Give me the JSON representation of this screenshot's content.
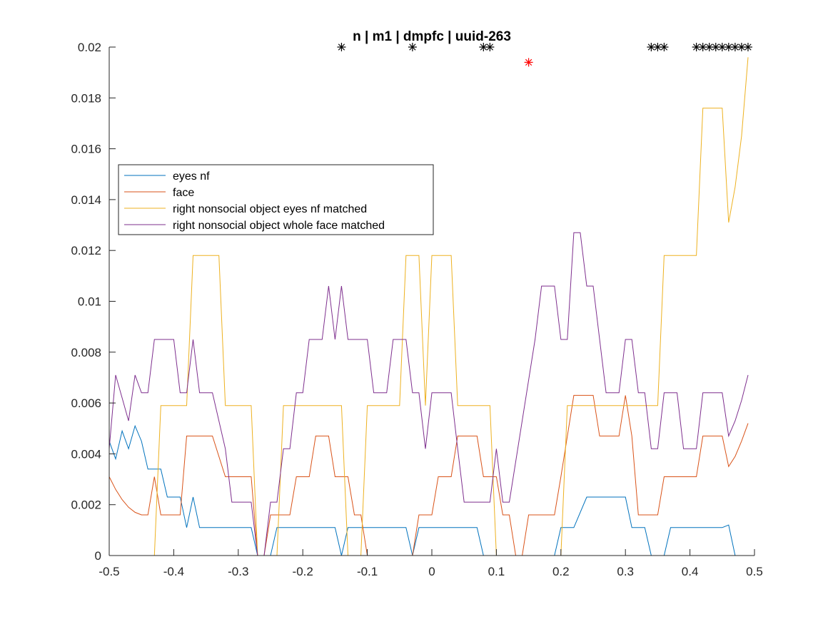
{
  "chart_data": {
    "type": "line",
    "title": "n | m1 | dmpfc | uuid-263",
    "xlabel": "",
    "ylabel": "",
    "xlim": [
      -0.5,
      0.5
    ],
    "ylim": [
      0,
      0.02
    ],
    "grid": false,
    "legend_position": "left",
    "x_ticks": [
      "-0.5",
      "-0.4",
      "-0.3",
      "-0.2",
      "-0.1",
      "0",
      "0.1",
      "0.2",
      "0.3",
      "0.4",
      "0.5"
    ],
    "y_ticks": [
      "0",
      "0.002",
      "0.004",
      "0.006",
      "0.008",
      "0.01",
      "0.012",
      "0.014",
      "0.016",
      "0.018",
      "0.02"
    ],
    "series": [
      {
        "name": "eyes nf",
        "color": "#0072BD",
        "points": [
          [
            -0.5,
            0.0045
          ],
          [
            -0.49,
            0.0038
          ],
          [
            -0.48,
            0.0049
          ],
          [
            -0.47,
            0.0042
          ],
          [
            -0.46,
            0.0051
          ],
          [
            -0.45,
            0.0045
          ],
          [
            -0.44,
            0.0034
          ],
          [
            -0.43,
            0.0034
          ],
          [
            -0.42,
            0.0034
          ],
          [
            -0.41,
            0.0023
          ],
          [
            -0.39,
            0.0023
          ],
          [
            -0.38,
            0.0011
          ],
          [
            -0.37,
            0.0023
          ],
          [
            -0.36,
            0.0011
          ],
          [
            -0.28,
            0.0011
          ],
          [
            -0.27,
            0.0
          ],
          [
            -0.25,
            0.0
          ],
          [
            -0.24,
            0.0011
          ],
          [
            -0.15,
            0.0011
          ],
          [
            -0.14,
            0.0
          ],
          [
            -0.13,
            0.0011
          ],
          [
            -0.04,
            0.0011
          ],
          [
            -0.03,
            0.0
          ],
          [
            -0.02,
            0.0011
          ],
          [
            0.07,
            0.0011
          ],
          [
            0.08,
            0.0
          ],
          [
            0.19,
            0.0
          ],
          [
            0.2,
            0.0011
          ],
          [
            0.22,
            0.0011
          ],
          [
            0.24,
            0.0023
          ],
          [
            0.3,
            0.0023
          ],
          [
            0.31,
            0.0011
          ],
          [
            0.33,
            0.0011
          ],
          [
            0.34,
            0.0
          ],
          [
            0.36,
            0.0
          ],
          [
            0.37,
            0.0011
          ],
          [
            0.45,
            0.0011
          ],
          [
            0.46,
            0.0012
          ],
          [
            0.47,
            0.0
          ],
          [
            0.49,
            0.0
          ]
        ]
      },
      {
        "name": "face",
        "color": "#D95319",
        "points": [
          [
            -0.5,
            0.0031
          ],
          [
            -0.49,
            0.0026
          ],
          [
            -0.48,
            0.0022
          ],
          [
            -0.47,
            0.0019
          ],
          [
            -0.46,
            0.0017
          ],
          [
            -0.45,
            0.0016
          ],
          [
            -0.44,
            0.0016
          ],
          [
            -0.43,
            0.0031
          ],
          [
            -0.42,
            0.0016
          ],
          [
            -0.39,
            0.0016
          ],
          [
            -0.38,
            0.0047
          ],
          [
            -0.34,
            0.0047
          ],
          [
            -0.32,
            0.0031
          ],
          [
            -0.28,
            0.0031
          ],
          [
            -0.27,
            0.0
          ],
          [
            -0.26,
            0.0
          ],
          [
            -0.25,
            0.0016
          ],
          [
            -0.22,
            0.0016
          ],
          [
            -0.21,
            0.0031
          ],
          [
            -0.19,
            0.0031
          ],
          [
            -0.18,
            0.0047
          ],
          [
            -0.16,
            0.0047
          ],
          [
            -0.15,
            0.0031
          ],
          [
            -0.13,
            0.0031
          ],
          [
            -0.12,
            0.0016
          ],
          [
            -0.11,
            0.0016
          ],
          [
            -0.1,
            0.0
          ],
          [
            -0.03,
            0.0
          ],
          [
            -0.02,
            0.0016
          ],
          [
            0.0,
            0.0016
          ],
          [
            0.01,
            0.0031
          ],
          [
            0.03,
            0.0031
          ],
          [
            0.04,
            0.0047
          ],
          [
            0.07,
            0.0047
          ],
          [
            0.08,
            0.0031
          ],
          [
            0.1,
            0.0031
          ],
          [
            0.11,
            0.0016
          ],
          [
            0.12,
            0.0016
          ],
          [
            0.13,
            0.0
          ],
          [
            0.14,
            0.0
          ],
          [
            0.15,
            0.0016
          ],
          [
            0.19,
            0.0016
          ],
          [
            0.2,
            0.0031
          ],
          [
            0.22,
            0.0063
          ],
          [
            0.25,
            0.0063
          ],
          [
            0.26,
            0.0047
          ],
          [
            0.27,
            0.0047
          ],
          [
            0.28,
            0.0047
          ],
          [
            0.29,
            0.0047
          ],
          [
            0.3,
            0.0063
          ],
          [
            0.31,
            0.0047
          ],
          [
            0.32,
            0.0016
          ],
          [
            0.35,
            0.0016
          ],
          [
            0.36,
            0.0031
          ],
          [
            0.41,
            0.0031
          ],
          [
            0.42,
            0.0047
          ],
          [
            0.45,
            0.0047
          ],
          [
            0.46,
            0.0035
          ],
          [
            0.47,
            0.0039
          ],
          [
            0.48,
            0.0045
          ],
          [
            0.49,
            0.0052
          ]
        ]
      },
      {
        "name": "right nonsocial object eyes nf matched",
        "color": "#EDB120",
        "points": [
          [
            -0.5,
            0.0
          ],
          [
            -0.43,
            0.0
          ],
          [
            -0.42,
            0.0059
          ],
          [
            -0.38,
            0.0059
          ],
          [
            -0.37,
            0.0118
          ],
          [
            -0.33,
            0.0118
          ],
          [
            -0.32,
            0.0059
          ],
          [
            -0.28,
            0.0059
          ],
          [
            -0.27,
            0.0
          ],
          [
            -0.24,
            0.0
          ],
          [
            -0.23,
            0.0059
          ],
          [
            -0.14,
            0.0059
          ],
          [
            -0.13,
            0.0
          ],
          [
            -0.11,
            0.0
          ],
          [
            -0.1,
            0.0059
          ],
          [
            -0.05,
            0.0059
          ],
          [
            -0.04,
            0.0118
          ],
          [
            -0.02,
            0.0118
          ],
          [
            -0.01,
            0.0059
          ],
          [
            0.0,
            0.0118
          ],
          [
            0.03,
            0.0118
          ],
          [
            0.04,
            0.0059
          ],
          [
            0.09,
            0.0059
          ],
          [
            0.1,
            0.0
          ],
          [
            0.2,
            0.0
          ],
          [
            0.21,
            0.0059
          ],
          [
            0.35,
            0.0059
          ],
          [
            0.36,
            0.0118
          ],
          [
            0.41,
            0.0118
          ],
          [
            0.42,
            0.0176
          ],
          [
            0.45,
            0.0176
          ],
          [
            0.46,
            0.0131
          ],
          [
            0.47,
            0.0145
          ],
          [
            0.48,
            0.0165
          ],
          [
            0.49,
            0.0196
          ]
        ]
      },
      {
        "name": "right nonsocial object whole face matched",
        "color": "#7E2F8E",
        "points": [
          [
            -0.5,
            0.0042
          ],
          [
            -0.49,
            0.0071
          ],
          [
            -0.48,
            0.0062
          ],
          [
            -0.47,
            0.0053
          ],
          [
            -0.46,
            0.0071
          ],
          [
            -0.45,
            0.0064
          ],
          [
            -0.44,
            0.0064
          ],
          [
            -0.43,
            0.0085
          ],
          [
            -0.4,
            0.0085
          ],
          [
            -0.39,
            0.0064
          ],
          [
            -0.38,
            0.0064
          ],
          [
            -0.37,
            0.0085
          ],
          [
            -0.36,
            0.0064
          ],
          [
            -0.34,
            0.0064
          ],
          [
            -0.32,
            0.0042
          ],
          [
            -0.31,
            0.0021
          ],
          [
            -0.28,
            0.0021
          ],
          [
            -0.27,
            0.0
          ],
          [
            -0.26,
            0.0
          ],
          [
            -0.25,
            0.0021
          ],
          [
            -0.24,
            0.0021
          ],
          [
            -0.23,
            0.0042
          ],
          [
            -0.22,
            0.0042
          ],
          [
            -0.21,
            0.0064
          ],
          [
            -0.2,
            0.0064
          ],
          [
            -0.19,
            0.0085
          ],
          [
            -0.17,
            0.0085
          ],
          [
            -0.16,
            0.0106
          ],
          [
            -0.15,
            0.0085
          ],
          [
            -0.14,
            0.0106
          ],
          [
            -0.13,
            0.0085
          ],
          [
            -0.1,
            0.0085
          ],
          [
            -0.09,
            0.0064
          ],
          [
            -0.07,
            0.0064
          ],
          [
            -0.06,
            0.0085
          ],
          [
            -0.04,
            0.0085
          ],
          [
            -0.03,
            0.0064
          ],
          [
            -0.02,
            0.0064
          ],
          [
            -0.01,
            0.0042
          ],
          [
            0.0,
            0.0064
          ],
          [
            0.03,
            0.0064
          ],
          [
            0.04,
            0.0042
          ],
          [
            0.05,
            0.0021
          ],
          [
            0.09,
            0.0021
          ],
          [
            0.1,
            0.0042
          ],
          [
            0.11,
            0.0021
          ],
          [
            0.12,
            0.0021
          ],
          [
            0.16,
            0.0085
          ],
          [
            0.17,
            0.0106
          ],
          [
            0.19,
            0.0106
          ],
          [
            0.2,
            0.0085
          ],
          [
            0.21,
            0.0085
          ],
          [
            0.22,
            0.0127
          ],
          [
            0.23,
            0.0127
          ],
          [
            0.24,
            0.0106
          ],
          [
            0.25,
            0.0106
          ],
          [
            0.27,
            0.0064
          ],
          [
            0.29,
            0.0064
          ],
          [
            0.3,
            0.0085
          ],
          [
            0.31,
            0.0085
          ],
          [
            0.32,
            0.0064
          ],
          [
            0.33,
            0.0064
          ],
          [
            0.34,
            0.0042
          ],
          [
            0.35,
            0.0042
          ],
          [
            0.36,
            0.0064
          ],
          [
            0.38,
            0.0064
          ],
          [
            0.39,
            0.0042
          ],
          [
            0.41,
            0.0042
          ],
          [
            0.42,
            0.0064
          ],
          [
            0.45,
            0.0064
          ],
          [
            0.46,
            0.0047
          ],
          [
            0.47,
            0.0053
          ],
          [
            0.48,
            0.0061
          ],
          [
            0.49,
            0.0071
          ]
        ]
      }
    ],
    "significance_markers": [
      {
        "color": "#000000",
        "y": 0.02,
        "x": [
          -0.14,
          -0.03,
          0.08,
          0.09,
          0.34,
          0.35,
          0.36,
          0.41,
          0.42,
          0.43,
          0.44,
          0.45,
          0.46,
          0.47,
          0.48,
          0.49
        ]
      },
      {
        "color": "#FF0000",
        "y": 0.0194,
        "x": [
          0.15
        ]
      }
    ]
  }
}
